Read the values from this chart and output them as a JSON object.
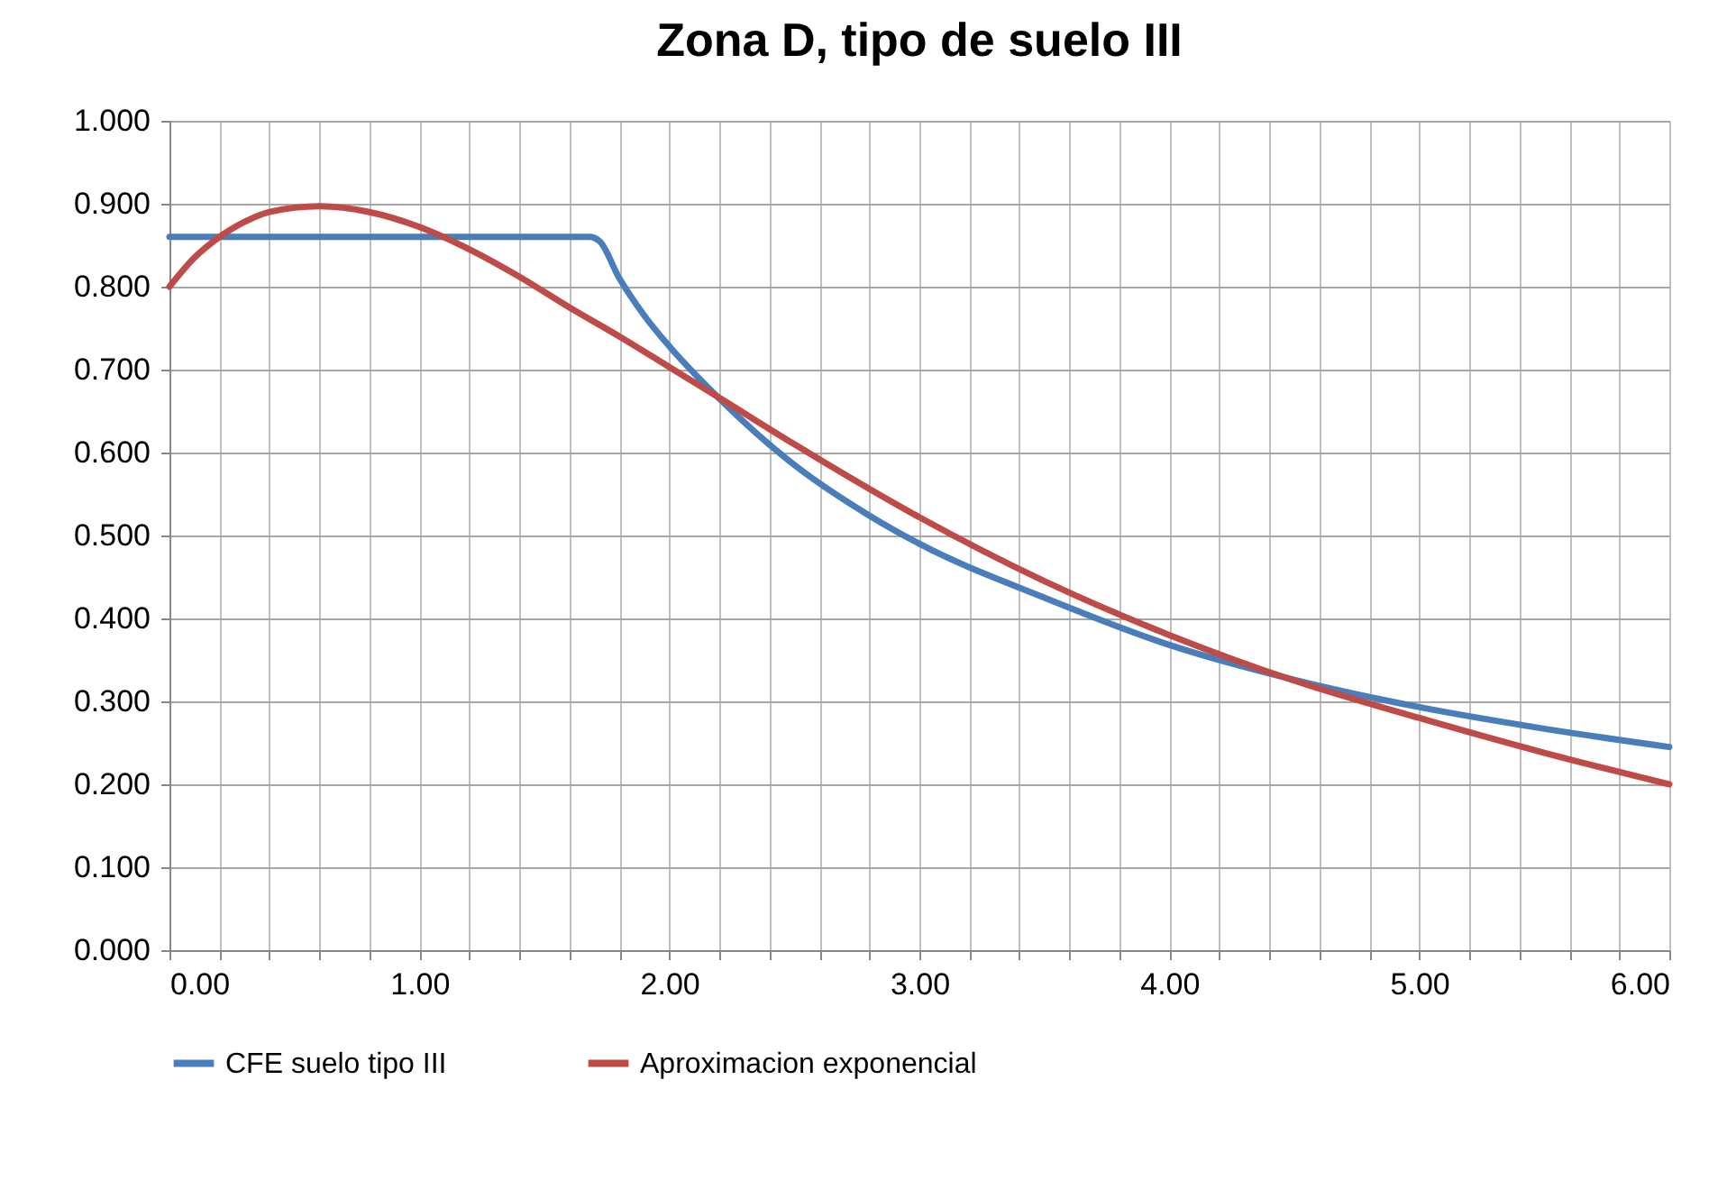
{
  "chart_data": {
    "type": "line",
    "title": "Zona D, tipo de suelo III",
    "xlim": [
      0,
      6
    ],
    "ylim": [
      0,
      1
    ],
    "xticks": [
      {
        "value": 0,
        "label": "0.00"
      },
      {
        "value": 0.2,
        "label": null
      },
      {
        "value": 0.4,
        "label": null
      },
      {
        "value": 0.6,
        "label": null
      },
      {
        "value": 0.8,
        "label": null
      },
      {
        "value": 1,
        "label": "1.00"
      },
      {
        "value": 1.2,
        "label": null
      },
      {
        "value": 1.4,
        "label": null
      },
      {
        "value": 1.6,
        "label": null
      },
      {
        "value": 1.8,
        "label": null
      },
      {
        "value": 2,
        "label": "2.00"
      },
      {
        "value": 2.2,
        "label": null
      },
      {
        "value": 2.4,
        "label": null
      },
      {
        "value": 2.6,
        "label": null
      },
      {
        "value": 2.8,
        "label": null
      },
      {
        "value": 3,
        "label": "3.00"
      },
      {
        "value": 3.2,
        "label": null
      },
      {
        "value": 3.4,
        "label": null
      },
      {
        "value": 3.6,
        "label": null
      },
      {
        "value": 3.8,
        "label": null
      },
      {
        "value": 4,
        "label": "4.00"
      },
      {
        "value": 4.2,
        "label": null
      },
      {
        "value": 4.4,
        "label": null
      },
      {
        "value": 4.6,
        "label": null
      },
      {
        "value": 4.8,
        "label": null
      },
      {
        "value": 5,
        "label": "5.00"
      },
      {
        "value": 5.2,
        "label": null
      },
      {
        "value": 5.4,
        "label": null
      },
      {
        "value": 5.6,
        "label": null
      },
      {
        "value": 5.8,
        "label": null
      },
      {
        "value": 6,
        "label": "6.00"
      }
    ],
    "yticks": [
      {
        "value": 0,
        "label": "0.000"
      },
      {
        "value": 0.1,
        "label": "0.100"
      },
      {
        "value": 0.2,
        "label": "0.200"
      },
      {
        "value": 0.3,
        "label": "0.300"
      },
      {
        "value": 0.4,
        "label": "0.400"
      },
      {
        "value": 0.5,
        "label": "0.500"
      },
      {
        "value": 0.6,
        "label": "0.600"
      },
      {
        "value": 0.7,
        "label": "0.700"
      },
      {
        "value": 0.8,
        "label": "0.800"
      },
      {
        "value": 0.9,
        "label": "0.900"
      },
      {
        "value": 1,
        "label": "1.000"
      }
    ],
    "grid": true,
    "legend": "bottom",
    "marker": "none",
    "line_style": "solid",
    "series": [
      {
        "name": "CFE suelo tipo III",
        "color": "#4a7ebb",
        "x": [
          0,
          1.68,
          1.72,
          1.8,
          1.9,
          2.0,
          2.2,
          2.5,
          2.8,
          3.0,
          3.5,
          4.0,
          4.5,
          5.0,
          5.5,
          6.0
        ],
        "values": [
          0.86,
          0.86,
          0.855,
          0.81,
          0.765,
          0.728,
          0.665,
          0.585,
          0.524,
          0.49,
          0.425,
          0.368,
          0.326,
          0.293,
          0.267,
          0.245
        ]
      },
      {
        "name": "Aproximacion exponencial",
        "color": "#be4b48",
        "x": [
          0,
          0.1,
          0.2,
          0.3,
          0.4,
          0.6,
          0.8,
          1.0,
          1.2,
          1.4,
          1.6,
          1.8,
          2.0,
          2.2,
          2.5,
          3.0,
          3.5,
          4.0,
          4.5,
          5.0,
          5.5,
          6.0
        ],
        "values": [
          0.8,
          0.835,
          0.86,
          0.878,
          0.89,
          0.897,
          0.89,
          0.872,
          0.845,
          0.812,
          0.775,
          0.74,
          0.703,
          0.666,
          0.61,
          0.522,
          0.445,
          0.38,
          0.325,
          0.28,
          0.238,
          0.2
        ]
      }
    ]
  }
}
